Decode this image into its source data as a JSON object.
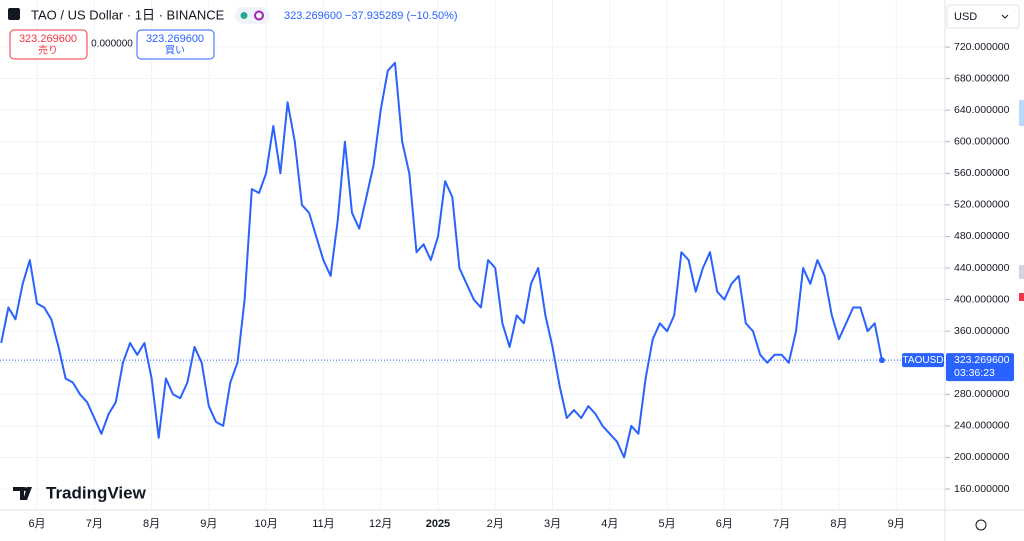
{
  "header": {
    "symbol": "TAO / US Dollar · 1日 · BINANCE",
    "price": "323.269600",
    "change": "−37.935289 (−10.50%)"
  },
  "trade": {
    "sell_price": "323.269600",
    "sell_label": "売り",
    "spread": "0.000000",
    "buy_price": "323.269600",
    "buy_label": "買い"
  },
  "currency": "USD",
  "brand": "TradingView",
  "chart_data": {
    "type": "line",
    "color": "#2962ff",
    "categories": [
      null,
      null,
      null,
      null,
      null,
      "6月",
      null,
      null,
      null,
      null,
      null,
      null,
      null,
      "7月",
      null,
      null,
      null,
      null,
      null,
      null,
      null,
      "8月",
      null,
      null,
      null,
      null,
      null,
      null,
      null,
      "9月",
      null,
      null,
      null,
      null,
      null,
      null,
      null,
      "10月",
      null,
      null,
      null,
      null,
      null,
      null,
      null,
      "11月",
      null,
      null,
      null,
      null,
      null,
      null,
      null,
      "12月",
      null,
      null,
      null,
      null,
      null,
      null,
      null,
      "2025",
      null,
      null,
      null,
      null,
      null,
      null,
      null,
      "2月",
      null,
      null,
      null,
      null,
      null,
      null,
      null,
      "3月",
      null,
      null,
      null,
      null,
      null,
      null,
      null,
      "4月",
      null,
      null,
      null,
      null,
      null,
      null,
      null,
      "5月",
      null,
      null,
      null,
      null,
      null,
      null,
      null,
      "6月",
      null,
      null,
      null,
      null,
      null,
      null,
      null,
      "7月",
      null,
      null,
      null,
      null,
      null,
      null,
      null,
      "8月",
      null,
      null,
      null,
      null,
      null,
      null,
      null,
      "9月"
    ],
    "values": [
      345,
      390,
      375,
      420,
      450,
      395,
      390,
      375,
      340,
      300,
      295,
      280,
      270,
      250,
      230,
      255,
      270,
      320,
      345,
      330,
      345,
      300,
      225,
      300,
      280,
      275,
      295,
      340,
      320,
      265,
      245,
      240,
      295,
      320,
      400,
      540,
      535,
      560,
      620,
      560,
      650,
      600,
      520,
      510,
      480,
      450,
      430,
      500,
      600,
      510,
      490,
      530,
      570,
      640,
      690,
      700,
      600,
      560,
      460,
      470,
      450,
      480,
      550,
      530,
      440,
      420,
      400,
      390,
      450,
      440,
      370,
      340,
      380,
      370,
      420,
      440,
      380,
      340,
      290,
      250,
      260,
      250,
      265,
      255,
      240,
      230,
      220,
      200,
      240,
      230,
      300,
      350,
      370,
      360,
      380,
      460,
      450,
      410,
      440,
      460,
      410,
      400,
      420,
      430,
      370,
      360,
      330,
      320,
      330,
      330,
      320,
      360,
      440,
      420,
      450,
      430,
      380,
      350,
      370,
      390,
      390,
      360,
      370,
      323.2696,
      null,
      null
    ],
    "ylim": [
      133.4,
      779.6
    ],
    "yticks": [
      {
        "value": 160,
        "label": "160.000000"
      },
      {
        "value": 200,
        "label": "200.000000"
      },
      {
        "value": 240,
        "label": "240.000000"
      },
      {
        "value": 280,
        "label": "280.000000"
      },
      {
        "value": 320,
        "label": "320.000000"
      },
      {
        "value": 360,
        "label": "360.000000"
      },
      {
        "value": 400,
        "label": "400.000000"
      },
      {
        "value": 440,
        "label": "440.000000"
      },
      {
        "value": 480,
        "label": "480.000000"
      },
      {
        "value": 520,
        "label": "520.000000"
      },
      {
        "value": 560,
        "label": "560.000000"
      },
      {
        "value": 600,
        "label": "600.000000"
      },
      {
        "value": 640,
        "label": "640.000000"
      },
      {
        "value": 680,
        "label": "680.000000"
      },
      {
        "value": 720,
        "label": "720.000000"
      }
    ],
    "last_price": {
      "symbol": "TAOUSD",
      "value": 323.2696,
      "label": "323.269600",
      "countdown": "03:36:23"
    }
  }
}
